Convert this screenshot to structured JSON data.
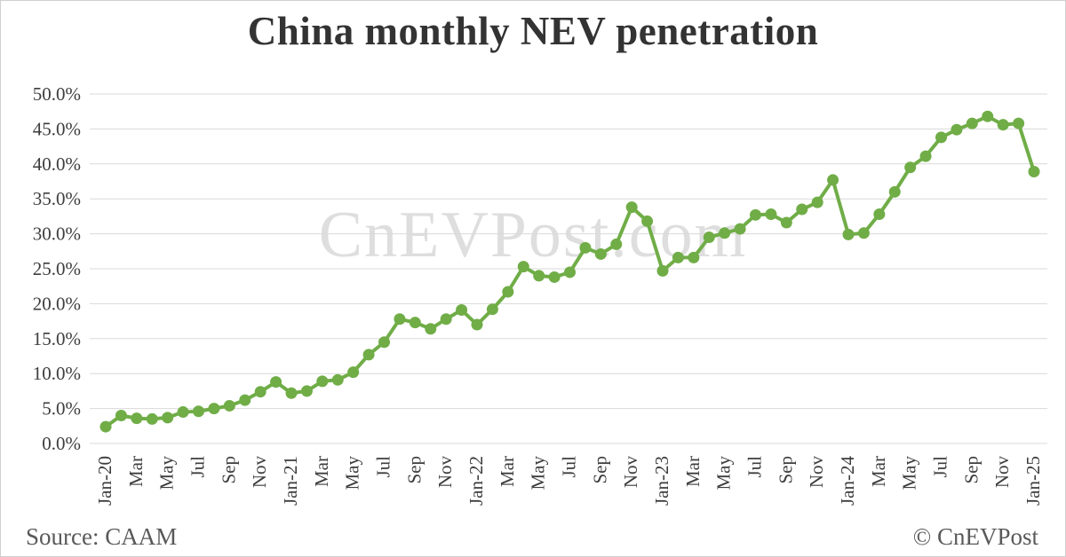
{
  "page": {
    "background": "#ffffff",
    "border_color": "#cfcfcf"
  },
  "watermark": {
    "text": "CnEVPost.com",
    "color": "#dedede"
  },
  "footer": {
    "source": "Source: CAAM",
    "credit": "© CnEVPost",
    "color": "#595959"
  },
  "chart_data": {
    "type": "line",
    "title": "China monthly NEV penetration",
    "series_name": "NEV penetration rate",
    "line_color": "#70AD47",
    "marker_color": "#70AD47",
    "grid_color": "#d9d9d9",
    "tick_label_color": "#3d3d3d",
    "grid": true,
    "legend": "none",
    "ylim": [
      0,
      50
    ],
    "y_tick_step": 5,
    "y_tick_labels": [
      "0.0%",
      "5.0%",
      "10.0%",
      "15.0%",
      "20.0%",
      "25.0%",
      "30.0%",
      "35.0%",
      "40.0%",
      "45.0%",
      "50.0%"
    ],
    "x_tick_every": 2,
    "x_tick_labels": [
      "Jan-20",
      "Mar",
      "May",
      "Jul",
      "Sep",
      "Nov",
      "Jan-21",
      "Mar",
      "May",
      "Jul",
      "Sep",
      "Nov",
      "Jan-22",
      "Mar",
      "May",
      "Jul",
      "Sep",
      "Nov",
      "Jan-23",
      "Mar",
      "May",
      "Jul",
      "Sep",
      "Nov",
      "Jan-24",
      "Mar",
      "May",
      "Jul",
      "Sep",
      "Nov",
      "Jan-25"
    ],
    "categories": [
      "Jan-20",
      "Feb-20",
      "Mar-20",
      "Apr-20",
      "May-20",
      "Jun-20",
      "Jul-20",
      "Aug-20",
      "Sep-20",
      "Oct-20",
      "Nov-20",
      "Dec-20",
      "Jan-21",
      "Feb-21",
      "Mar-21",
      "Apr-21",
      "May-21",
      "Jun-21",
      "Jul-21",
      "Aug-21",
      "Sep-21",
      "Oct-21",
      "Nov-21",
      "Dec-21",
      "Jan-22",
      "Feb-22",
      "Mar-22",
      "Apr-22",
      "May-22",
      "Jun-22",
      "Jul-22",
      "Aug-22",
      "Sep-22",
      "Oct-22",
      "Nov-22",
      "Dec-22",
      "Jan-23",
      "Feb-23",
      "Mar-23",
      "Apr-23",
      "May-23",
      "Jun-23",
      "Jul-23",
      "Aug-23",
      "Sep-23",
      "Oct-23",
      "Nov-23",
      "Dec-23",
      "Jan-24",
      "Feb-24",
      "Mar-24",
      "Apr-24",
      "May-24",
      "Jun-24",
      "Jul-24",
      "Aug-24",
      "Sep-24",
      "Oct-24",
      "Nov-24",
      "Dec-24",
      "Jan-25"
    ],
    "values": [
      2.4,
      4.0,
      3.6,
      3.5,
      3.7,
      4.5,
      4.6,
      5.0,
      5.4,
      6.2,
      7.4,
      8.8,
      7.2,
      7.5,
      8.9,
      9.1,
      10.2,
      12.7,
      14.5,
      17.8,
      17.3,
      16.4,
      17.8,
      19.1,
      17.0,
      19.2,
      21.7,
      25.3,
      24.0,
      23.8,
      24.5,
      28.0,
      27.1,
      28.5,
      33.8,
      31.8,
      24.7,
      26.6,
      26.6,
      29.5,
      30.1,
      30.7,
      32.7,
      32.8,
      31.6,
      33.5,
      34.5,
      37.7,
      29.9,
      30.1,
      32.8,
      36.0,
      39.5,
      41.1,
      43.8,
      44.9,
      45.8,
      46.8,
      45.6,
      45.8,
      38.9
    ]
  }
}
